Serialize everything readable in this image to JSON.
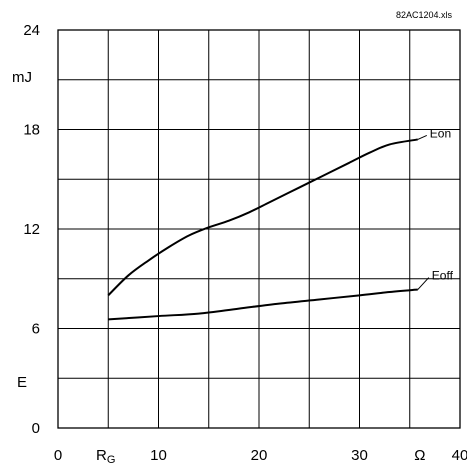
{
  "chart_data": {
    "type": "line",
    "file_label": "82AC1204.xls",
    "x_ticks": [
      {
        "value": 0,
        "label": "0"
      },
      {
        "value": 10,
        "label": "10"
      },
      {
        "value": 20,
        "label": "20"
      },
      {
        "value": 30,
        "label": "30"
      },
      {
        "value": 40,
        "label": "40"
      }
    ],
    "y_ticks": [
      {
        "value": 0,
        "label": "0"
      },
      {
        "value": 6,
        "label": "6"
      },
      {
        "value": 12,
        "label": "12"
      },
      {
        "value": 18,
        "label": "18"
      },
      {
        "value": 24,
        "label": "24"
      }
    ],
    "x_axis_symbol": {
      "main": "R",
      "sub": "G"
    },
    "x_unit": "Ω",
    "y_axis_symbol": "E",
    "y_unit": "mJ",
    "xlim": [
      0,
      40
    ],
    "ylim": [
      0,
      24
    ],
    "x_grid_step": 5,
    "y_grid_step": 3,
    "grid": true,
    "series": [
      {
        "name": "Eon",
        "x": [
          5,
          7,
          9,
          11,
          13,
          15,
          17,
          19,
          21,
          23,
          25,
          27,
          29,
          31,
          33,
          35.8
        ],
        "y": [
          8.0,
          9.2,
          10.1,
          10.9,
          11.6,
          12.1,
          12.5,
          13.0,
          13.6,
          14.2,
          14.8,
          15.4,
          16.0,
          16.6,
          17.1,
          17.4
        ]
      },
      {
        "name": "Eoff",
        "x": [
          5,
          10,
          14,
          18,
          22,
          26,
          30,
          33,
          35.8
        ],
        "y": [
          6.55,
          6.75,
          6.9,
          7.2,
          7.5,
          7.75,
          8.0,
          8.2,
          8.35
        ]
      }
    ]
  }
}
